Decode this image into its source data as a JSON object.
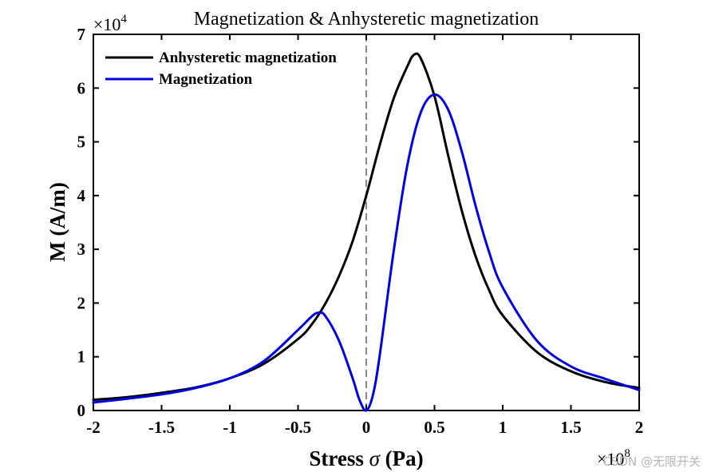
{
  "chart_data": {
    "type": "line",
    "title": "Magnetization & Anhysteretic magnetization",
    "xlabel_prefix": "Stress ",
    "xlabel_symbol": "σ",
    "xlabel_suffix": " (Pa)",
    "ylabel": "M (A/m)",
    "x_multiplier_base": "×10",
    "x_multiplier_exp": "8",
    "y_multiplier_base": "×10",
    "y_multiplier_exp": "4",
    "xlim": [
      -2,
      2
    ],
    "ylim": [
      0,
      7
    ],
    "xticks": [
      "-2",
      "-1.5",
      "-1",
      "-0.5",
      "0",
      "0.5",
      "1",
      "1.5",
      "2"
    ],
    "yticks": [
      "0",
      "1",
      "2",
      "3",
      "4",
      "5",
      "6",
      "7"
    ],
    "legend_position": "top-left",
    "zero_line": "dashed vertical at x = 0",
    "series": [
      {
        "name": "Anhysteretic magnetization",
        "color": "#000000",
        "x": [
          -2,
          -1.75,
          -1.5,
          -1.25,
          -1,
          -0.75,
          -0.5,
          -0.4,
          -0.3,
          -0.2,
          -0.1,
          0,
          0.1,
          0.2,
          0.3,
          0.35,
          0.4,
          0.5,
          0.6,
          0.7,
          0.8,
          0.9,
          1,
          1.25,
          1.5,
          1.75,
          2
        ],
        "y": [
          0.2,
          0.25,
          0.33,
          0.43,
          0.6,
          0.87,
          1.33,
          1.6,
          1.99,
          2.5,
          3.15,
          4.0,
          4.95,
          5.8,
          6.4,
          6.62,
          6.55,
          5.85,
          4.75,
          3.72,
          2.88,
          2.24,
          1.77,
          1.09,
          0.73,
          0.53,
          0.42
        ]
      },
      {
        "name": "Magnetization",
        "color": "#0000e0",
        "x": [
          -2,
          -1.75,
          -1.5,
          -1.25,
          -1,
          -0.75,
          -0.5,
          -0.4,
          -0.35,
          -0.3,
          -0.2,
          -0.1,
          -0.05,
          0,
          0.05,
          0.1,
          0.2,
          0.3,
          0.4,
          0.5,
          0.6,
          0.7,
          0.8,
          0.9,
          1,
          1.25,
          1.5,
          1.75,
          2
        ],
        "y": [
          0.15,
          0.22,
          0.3,
          0.42,
          0.6,
          0.92,
          1.5,
          1.75,
          1.82,
          1.76,
          1.3,
          0.6,
          0.2,
          0.0,
          0.3,
          1.05,
          2.95,
          4.55,
          5.55,
          5.88,
          5.6,
          4.82,
          3.82,
          2.95,
          2.29,
          1.3,
          0.82,
          0.59,
          0.38
        ]
      }
    ]
  },
  "watermark": "CSDN @无限开关"
}
